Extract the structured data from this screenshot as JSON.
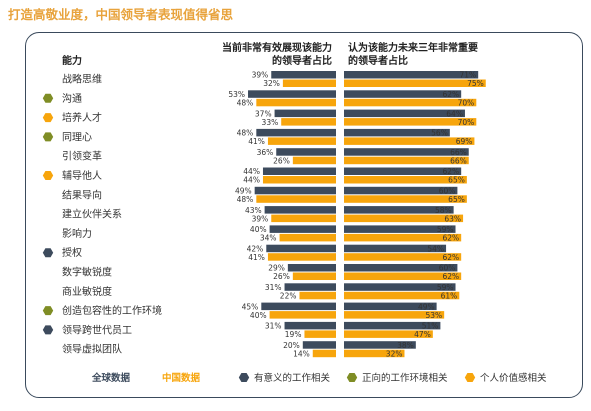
{
  "header": {
    "title": "打造高敬业度，中国领导者表现值得省思"
  },
  "colors": {
    "global": "#3d4b5d",
    "china": "#f7a50c",
    "hex_dark": "#3d4b5d",
    "hex_green": "#7f8d25",
    "hex_orange": "#f7a50c",
    "header": "#e8a33c"
  },
  "chart_data": {
    "type": "bar",
    "column_header": "能力",
    "left_panel_title": [
      "当前非常有效展现该能力",
      "的领导者占比"
    ],
    "right_panel_title": [
      "认为该能力未来三年非常重要",
      "的领导者占比"
    ],
    "value_suffix": "%",
    "xlim": [
      0,
      100
    ],
    "categories": [
      {
        "label": "战略思维",
        "marker": null
      },
      {
        "label": "沟通",
        "marker": "正向的工作环境相关"
      },
      {
        "label": "培养人才",
        "marker": "个人价值感相关"
      },
      {
        "label": "同理心",
        "marker": "正向的工作环境相关"
      },
      {
        "label": "引领变革",
        "marker": null
      },
      {
        "label": "辅导他人",
        "marker": "个人价值感相关"
      },
      {
        "label": "结果导向",
        "marker": null
      },
      {
        "label": "建立伙伴关系",
        "marker": null
      },
      {
        "label": "影响力",
        "marker": null
      },
      {
        "label": "授权",
        "marker": "有意义的工作相关"
      },
      {
        "label": "数字敏锐度",
        "marker": null
      },
      {
        "label": "商业敏锐度",
        "marker": null
      },
      {
        "label": "创造包容性的工作环境",
        "marker": "正向的工作环境相关"
      },
      {
        "label": "领导跨世代员工",
        "marker": "有意义的工作相关"
      },
      {
        "label": "领导虚拟团队",
        "marker": null
      }
    ],
    "series": [
      {
        "name": "全球数据",
        "current_effective": [
          39,
          53,
          37,
          48,
          36,
          44,
          49,
          43,
          40,
          42,
          29,
          31,
          45,
          31,
          20
        ],
        "future_important": [
          71,
          62,
          64,
          56,
          66,
          62,
          60,
          58,
          59,
          54,
          60,
          59,
          49,
          51,
          38
        ]
      },
      {
        "name": "中国数据",
        "current_effective": [
          32,
          48,
          33,
          41,
          26,
          44,
          48,
          39,
          34,
          41,
          26,
          22,
          40,
          19,
          14
        ],
        "future_important": [
          75,
          70,
          70,
          69,
          66,
          65,
          65,
          63,
          62,
          62,
          62,
          61,
          53,
          47,
          32
        ]
      }
    ],
    "legend": [
      {
        "type": "series",
        "label": "全球数据"
      },
      {
        "type": "series",
        "label": "中国数据"
      },
      {
        "type": "marker",
        "label": "有意义的工作相关"
      },
      {
        "type": "marker",
        "label": "正向的工作环境相关"
      },
      {
        "type": "marker",
        "label": "个人价值感相关"
      }
    ],
    "legend_position": "bottom",
    "grid": false
  }
}
